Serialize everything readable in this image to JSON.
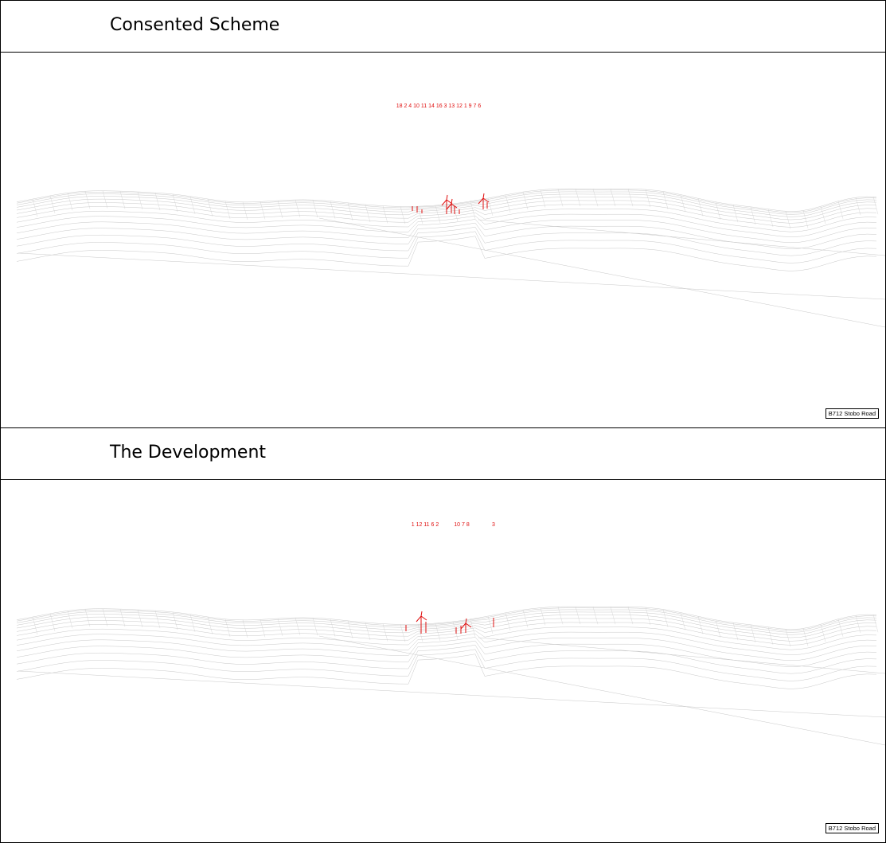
{
  "panels": [
    {
      "title": "Consented Scheme",
      "turbine_numbers": "18 2 4 10 11 14 16 3 13 12 1 9 7 6",
      "location_label": "B712 Stobo Road"
    },
    {
      "title": "The Development",
      "turbine_numbers_groups": [
        "1 12 11 6 2",
        "10 7 8",
        "3"
      ],
      "location_label": "B712 Stobo Road"
    }
  ],
  "colors": {
    "border": "#000000",
    "terrain_wireframe": "#bdbdbd",
    "turbine": "#e01010",
    "turbine_label": "#e01010"
  }
}
